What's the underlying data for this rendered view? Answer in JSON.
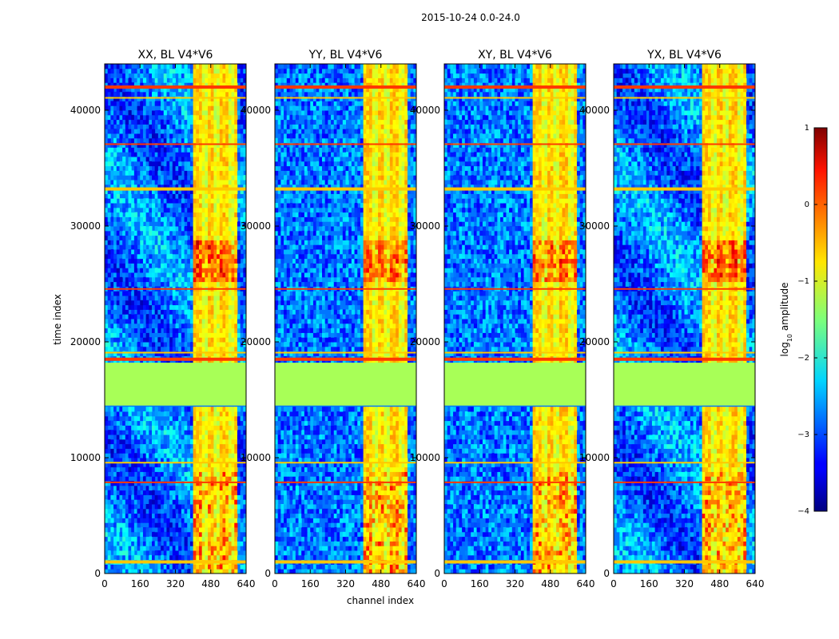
{
  "chart_data": {
    "type": "heatmap",
    "suptitle": "2015-10-24 0.0-24.0",
    "xlabel": "channel index",
    "ylabel": "time index",
    "xlim": [
      0,
      640
    ],
    "ylim": [
      0,
      44000
    ],
    "xticks": [
      "0",
      "160",
      "320",
      "480",
      "640"
    ],
    "yticks": [
      "0",
      "10000",
      "20000",
      "30000",
      "40000"
    ],
    "panels": [
      {
        "title": "XX, BL V4*V6"
      },
      {
        "title": "YY, BL V4*V6"
      },
      {
        "title": "XY, BL V4*V6"
      },
      {
        "title": "YX, BL V4*V6"
      }
    ],
    "colorbar": {
      "label": "log10 amplitude",
      "label_base": "log",
      "label_sub": "10",
      "label_rest": " amplitude",
      "range": [
        -4,
        1
      ],
      "ticks": [
        "1",
        "0",
        "−1",
        "−2",
        "−3",
        "−4"
      ],
      "colormap": "jet"
    },
    "features": {
      "flagged_time_range": [
        14500,
        18200
      ],
      "flagged_value": -1.3,
      "bright_channel_range": [
        405,
        600
      ],
      "peak_time_range": [
        25000,
        29000
      ],
      "rfi_time_rows": [
        42000,
        41000,
        37000,
        33200,
        24500,
        19000,
        18500,
        9500,
        7800,
        1000
      ],
      "background_level": -2.8
    }
  }
}
